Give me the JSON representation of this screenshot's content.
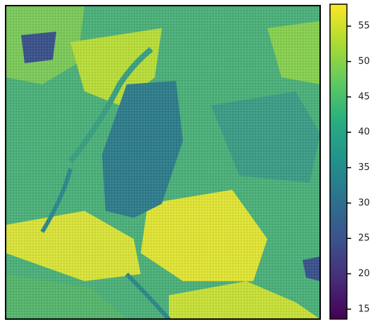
{
  "chart_data": {
    "type": "image",
    "colormap": "viridis",
    "clim": [
      13.6,
      58.1
    ],
    "cticks": [
      15,
      20,
      25,
      30,
      35,
      40,
      45,
      50,
      55
    ]
  }
}
